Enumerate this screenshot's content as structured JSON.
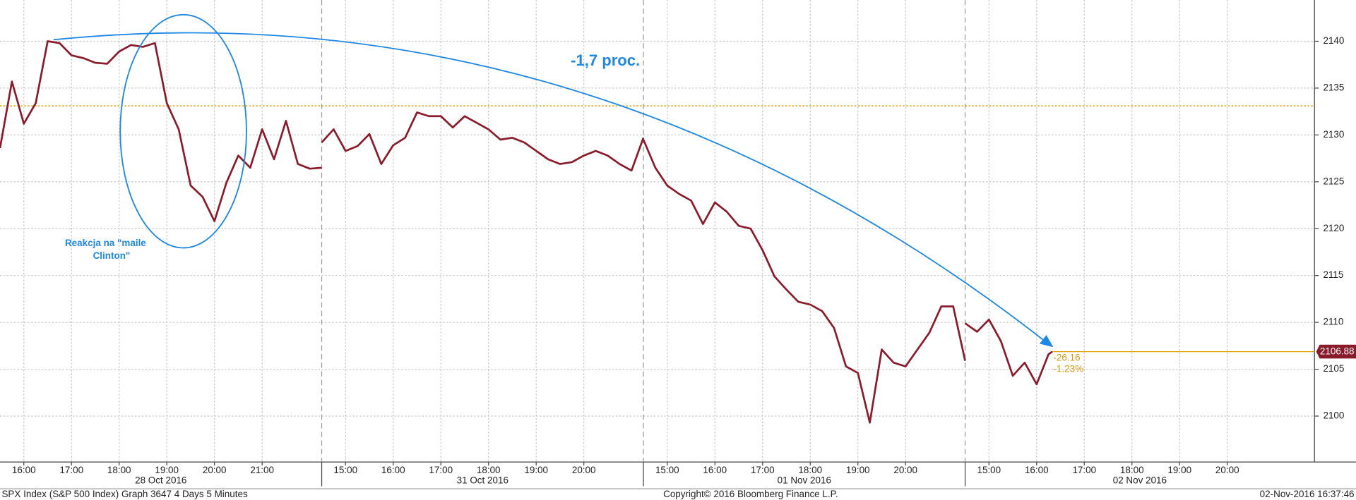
{
  "chart_data": {
    "type": "line",
    "color": "#8b1a2b",
    "grid": true,
    "ylim": [
      2095.1,
      2144.4
    ],
    "yticks": [
      2100,
      2105,
      2110,
      2115,
      2120,
      2125,
      2130,
      2135,
      2140
    ],
    "reference_line": {
      "value": 2133.1,
      "color": "#e0a000"
    },
    "last_value": 2106.88,
    "days": [
      {
        "label": "28 Oct 2016",
        "xlim": [
          15.5,
          22.25
        ],
        "xticks": [
          {
            "value": 16,
            "label": "16:00"
          },
          {
            "value": 17,
            "label": "17:00"
          },
          {
            "value": 18,
            "label": "18:00"
          },
          {
            "value": 19,
            "label": "19:00"
          },
          {
            "value": 20,
            "label": "20:00"
          },
          {
            "value": 21,
            "label": "21:00"
          }
        ],
        "x": [
          15.5,
          15.75,
          16,
          16.25,
          16.5,
          16.75,
          17,
          17.25,
          17.5,
          17.75,
          18,
          18.25,
          18.5,
          18.75,
          19,
          19.25,
          19.5,
          19.75,
          20,
          20.25,
          20.5,
          20.75,
          21,
          21.25,
          21.5,
          21.75,
          22,
          22.25
        ],
        "values": [
          2128.6,
          2135.7,
          2131.2,
          2133.4,
          2140,
          2139.8,
          2138.5,
          2138.2,
          2137.7,
          2137.6,
          2138.9,
          2139.6,
          2139.4,
          2139.8,
          2133.4,
          2130.6,
          2124.6,
          2123.4,
          2120.8,
          2124.9,
          2127.8,
          2126.5,
          2130.6,
          2127.4,
          2131.5,
          2126.9,
          2126.4,
          2126.5
        ]
      },
      {
        "label": "31 Oct 2016",
        "xlim": [
          14.5,
          21.25
        ],
        "xticks": [
          {
            "value": 15,
            "label": "15:00"
          },
          {
            "value": 16,
            "label": "16:00"
          },
          {
            "value": 17,
            "label": "17:00"
          },
          {
            "value": 18,
            "label": "18:00"
          },
          {
            "value": 19,
            "label": "19:00"
          },
          {
            "value": 20,
            "label": "20:00"
          }
        ],
        "x": [
          14.5,
          14.75,
          15,
          15.25,
          15.5,
          15.75,
          16,
          16.25,
          16.5,
          16.75,
          17,
          17.25,
          17.5,
          17.75,
          18,
          18.25,
          18.5,
          18.75,
          19,
          19.25,
          19.5,
          19.75,
          20,
          20.25,
          20.5,
          20.75,
          21,
          21.25
        ],
        "values": [
          2129.2,
          2130.6,
          2128.3,
          2128.8,
          2130.1,
          2126.9,
          2128.9,
          2129.7,
          2132.4,
          2132,
          2132,
          2130.8,
          2132,
          2131.3,
          2130.6,
          2129.5,
          2129.7,
          2129.2,
          2128.3,
          2127.4,
          2126.9,
          2127.1,
          2127.8,
          2128.3,
          2127.8,
          2126.9,
          2126.2,
          2129.7
        ]
      },
      {
        "label": "01 Nov 2016",
        "xlim": [
          14.5,
          21.25
        ],
        "xticks": [
          {
            "value": 15,
            "label": "15:00"
          },
          {
            "value": 16,
            "label": "16:00"
          },
          {
            "value": 17,
            "label": "17:00"
          },
          {
            "value": 18,
            "label": "18:00"
          },
          {
            "value": 19,
            "label": "19:00"
          },
          {
            "value": 20,
            "label": "20:00"
          }
        ],
        "x": [
          14.5,
          14.75,
          15,
          15.25,
          15.5,
          15.75,
          16,
          16.25,
          16.5,
          16.75,
          17,
          17.25,
          17.5,
          17.75,
          18,
          18.25,
          18.5,
          18.75,
          19,
          19.25,
          19.5,
          19.75,
          20,
          20.25,
          20.5,
          20.75,
          21,
          21.25
        ],
        "values": [
          2129.5,
          2126.5,
          2124.6,
          2123.7,
          2123,
          2120.5,
          2122.8,
          2121.8,
          2120.3,
          2120,
          2117.7,
          2114.9,
          2113.5,
          2112.2,
          2111.9,
          2111.2,
          2109.4,
          2105.3,
          2104.6,
          2099.3,
          2107.1,
          2105.7,
          2105.3,
          2107.1,
          2108.9,
          2111.7,
          2111.7,
          2105.9
        ]
      },
      {
        "label": "02 Nov 2016",
        "xlim": [
          14.5,
          21.83
        ],
        "xticks": [
          {
            "value": 15,
            "label": "15:00"
          },
          {
            "value": 16,
            "label": "16:00"
          },
          {
            "value": 17,
            "label": "17:00"
          },
          {
            "value": 18,
            "label": "18:00"
          },
          {
            "value": 19,
            "label": "19:00"
          },
          {
            "value": 20,
            "label": "20:00"
          }
        ],
        "x": [
          14.5,
          14.75,
          15,
          15.25,
          15.5,
          15.75,
          16,
          16.25,
          16.33
        ],
        "values": [
          2109.9,
          2109,
          2110.3,
          2108,
          2104.3,
          2105.7,
          2103.4,
          2106.6,
          2106.88
        ]
      }
    ],
    "annotations": {
      "drop": "-1,7 proc.",
      "reaction": [
        "Reakcja na \"maile",
        "Clinton\""
      ],
      "change": "-26.16",
      "change_pct": "-1.23%"
    }
  },
  "footer": {
    "left": "SPX Index (S&P 500 Index) Graph 3647 4 Days 5 Minutes",
    "center": "Copyright© 2016 Bloomberg Finance L.P.",
    "right": "02-Nov-2016 16:37:46"
  }
}
